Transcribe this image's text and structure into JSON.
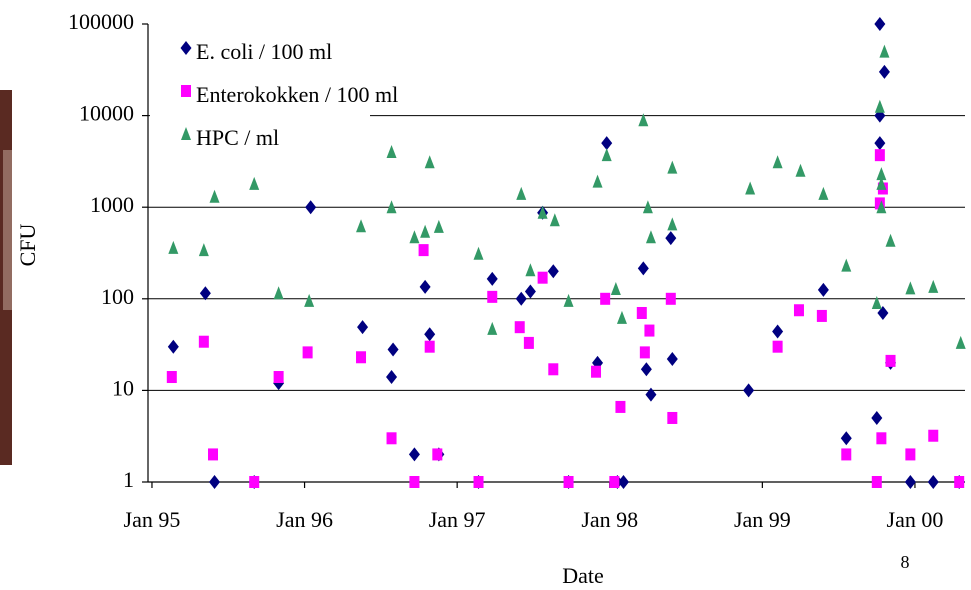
{
  "chart_data": {
    "type": "scatter",
    "x_label": "Date",
    "y_label": "CFU",
    "log_y": true,
    "grid": true,
    "legend": "upper left",
    "xlim": [
      1994.974,
      2000.328
    ],
    "xticks": [
      {
        "value": 1995,
        "label": "Jan 95"
      },
      {
        "value": 1996,
        "label": "Jan 96"
      },
      {
        "value": 1997,
        "label": "Jan 97"
      },
      {
        "value": 1998,
        "label": "Jan 98"
      },
      {
        "value": 1999,
        "label": "Jan 99"
      },
      {
        "value": 2000,
        "label": "Jan 00"
      }
    ],
    "ylim": [
      1,
      100000
    ],
    "yticks": [
      1,
      10,
      100,
      1000,
      10000,
      100000
    ],
    "series": [
      {
        "name": "E. coli / 100 ml",
        "color": "#000080",
        "marker": "diamond",
        "x": [
          1995.14,
          1995.35,
          1995.41,
          1995.67,
          1995.83,
          1996.04,
          1996.38,
          1996.57,
          1996.58,
          1996.72,
          1996.79,
          1996.82,
          1996.88,
          1997.14,
          1997.23,
          1997.42,
          1997.48,
          1997.56,
          1997.63,
          1997.73,
          1997.92,
          1997.98,
          1998.05,
          1998.09,
          1998.22,
          1998.24,
          1998.27,
          1998.4,
          1998.41,
          1998.91,
          1999.1,
          1999.4,
          1999.55,
          1999.75,
          1999.77,
          1999.77,
          1999.77,
          1999.8,
          1999.79,
          1999.84,
          1999.97,
          2000.12,
          2000.29
        ],
        "values": [
          30,
          115,
          1,
          1,
          12,
          1000,
          49,
          14,
          28,
          2,
          135,
          41,
          2,
          1,
          165,
          100,
          120,
          870,
          200,
          1,
          20,
          5000,
          1,
          1,
          215,
          17,
          9,
          460,
          22,
          10,
          44,
          125,
          3,
          5,
          100000,
          10000,
          5000,
          30000,
          70,
          20,
          1,
          1,
          1
        ]
      },
      {
        "name": "Enterokokken / 100 ml",
        "color": "#ff00ff",
        "marker": "square",
        "x": [
          1995.13,
          1995.34,
          1995.4,
          1995.67,
          1995.83,
          1996.02,
          1996.37,
          1996.57,
          1996.72,
          1996.78,
          1996.82,
          1996.87,
          1997.14,
          1997.23,
          1997.41,
          1997.47,
          1997.56,
          1997.63,
          1997.73,
          1997.91,
          1997.97,
          1998.03,
          1998.07,
          1998.21,
          1998.23,
          1998.26,
          1998.4,
          1998.41,
          1999.1,
          1999.24,
          1999.39,
          1999.55,
          1999.75,
          1999.77,
          1999.78,
          1999.77,
          1999.79,
          1999.84,
          1999.97,
          2000.12,
          2000.29
        ],
        "values": [
          14,
          34,
          2,
          1,
          14,
          26,
          23,
          3,
          1,
          340,
          30,
          2,
          1,
          105,
          49,
          33,
          170,
          17,
          1,
          16,
          100,
          1,
          6.6,
          70,
          26,
          45,
          100,
          5,
          30,
          75,
          65,
          2,
          1,
          3700,
          3,
          1100,
          1600,
          21,
          2,
          3.2,
          1
        ]
      },
      {
        "name": "HPC / ml",
        "color": "#339966",
        "marker": "triangle",
        "x": [
          1995.14,
          1995.34,
          1995.41,
          1995.67,
          1995.83,
          1996.03,
          1996.37,
          1996.57,
          1996.57,
          1996.72,
          1996.79,
          1996.82,
          1996.88,
          1997.14,
          1997.23,
          1997.42,
          1997.48,
          1997.56,
          1997.64,
          1997.73,
          1997.92,
          1997.98,
          1998.04,
          1998.08,
          1998.22,
          1998.25,
          1998.27,
          1998.41,
          1998.41,
          1998.92,
          1999.1,
          1999.25,
          1999.4,
          1999.55,
          1999.75,
          1999.77,
          1999.78,
          1999.78,
          1999.78,
          1999.8,
          1999.84,
          1999.97,
          2000.12,
          2000.3
        ],
        "values": [
          360,
          340,
          1300,
          1800,
          115,
          95,
          620,
          4000,
          1000,
          470,
          540,
          3100,
          610,
          310,
          47,
          1400,
          205,
          870,
          720,
          95,
          1900,
          3700,
          128,
          62,
          8900,
          1000,
          470,
          2700,
          650,
          1600,
          3100,
          2500,
          1400,
          230,
          90,
          12500,
          2300,
          1800,
          1000,
          50000,
          430,
          130,
          135,
          33
        ]
      }
    ]
  },
  "page_number": "8"
}
